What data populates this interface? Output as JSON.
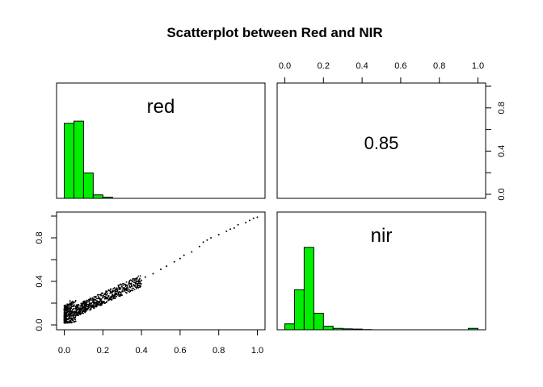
{
  "chart_data": {
    "type": "scatter",
    "title": "Scatterplot between Red and NIR",
    "variables": [
      "red",
      "nir"
    ],
    "correlation": "0.85",
    "axis_range": [
      0,
      1
    ],
    "tick_values": [
      0.0,
      0.2,
      0.4,
      0.6,
      0.8,
      1.0
    ],
    "tick_labels": [
      "0.0",
      "0.2",
      "0.4",
      "0.6",
      "0.8",
      "1.0"
    ],
    "histogram_color": "#00ee00",
    "histograms": {
      "red": {
        "bins": [
          0.0,
          0.05,
          0.1,
          0.15,
          0.2,
          0.25
        ],
        "heights": [
          0.65,
          0.67,
          0.22,
          0.03,
          0.01
        ]
      },
      "nir": {
        "bins": [
          0.0,
          0.05,
          0.1,
          0.15,
          0.2,
          0.25,
          0.3,
          0.35,
          0.4,
          0.45,
          0.5,
          0.55,
          0.6,
          0.65,
          0.7,
          0.75,
          0.8,
          0.85,
          0.9,
          0.95,
          1.0
        ],
        "heights": [
          0.05,
          0.34,
          0.7,
          0.14,
          0.03,
          0.012,
          0.008,
          0.006,
          0.002,
          0.0,
          0.0,
          0.0,
          0.0,
          0.0,
          0.0,
          0.0,
          0.0,
          0.0,
          0.0,
          0.012
        ]
      }
    },
    "scatter_points": {
      "x_red": [
        0.01,
        0.02,
        0.02,
        0.03,
        0.03,
        0.04,
        0.05,
        0.06,
        0.07,
        0.08,
        0.09,
        0.1,
        0.11,
        0.12,
        0.13,
        0.14,
        0.15,
        0.16,
        0.17,
        0.18,
        0.19,
        0.2,
        0.22,
        0.24,
        0.26,
        0.28,
        0.3,
        0.32,
        0.34,
        0.36,
        0.38,
        0.4,
        0.01,
        0.02,
        0.03,
        0.04,
        0.05,
        0.03,
        0.04,
        0.02,
        0.06,
        0.08,
        0.1,
        0.12,
        0.14,
        0.05,
        0.07,
        0.09,
        0.11,
        0.13,
        0.15,
        0.17,
        0.19,
        0.21,
        0.23,
        0.25,
        0.27,
        0.29,
        0.31,
        0.33,
        0.35,
        0.37,
        0.39,
        0.42,
        0.46,
        0.5,
        0.53,
        0.57,
        0.6,
        0.62,
        0.66,
        0.7,
        0.72,
        0.74,
        0.76,
        0.8,
        0.84,
        0.86,
        0.88,
        0.9,
        0.94,
        0.96,
        0.98,
        1.0
      ],
      "y_nir": [
        0.03,
        0.05,
        0.15,
        0.08,
        0.2,
        0.12,
        0.1,
        0.12,
        0.14,
        0.13,
        0.15,
        0.16,
        0.15,
        0.17,
        0.18,
        0.17,
        0.18,
        0.19,
        0.2,
        0.21,
        0.22,
        0.21,
        0.24,
        0.25,
        0.27,
        0.29,
        0.31,
        0.33,
        0.35,
        0.37,
        0.38,
        0.41,
        0.1,
        0.18,
        0.22,
        0.06,
        0.17,
        0.14,
        0.19,
        0.09,
        0.09,
        0.11,
        0.13,
        0.14,
        0.16,
        0.15,
        0.17,
        0.18,
        0.19,
        0.2,
        0.21,
        0.22,
        0.23,
        0.24,
        0.26,
        0.27,
        0.28,
        0.3,
        0.32,
        0.34,
        0.36,
        0.38,
        0.4,
        0.44,
        0.47,
        0.51,
        0.54,
        0.58,
        0.61,
        0.64,
        0.67,
        0.72,
        0.76,
        0.78,
        0.8,
        0.83,
        0.86,
        0.88,
        0.89,
        0.92,
        0.94,
        0.96,
        0.98,
        0.99
      ]
    }
  }
}
